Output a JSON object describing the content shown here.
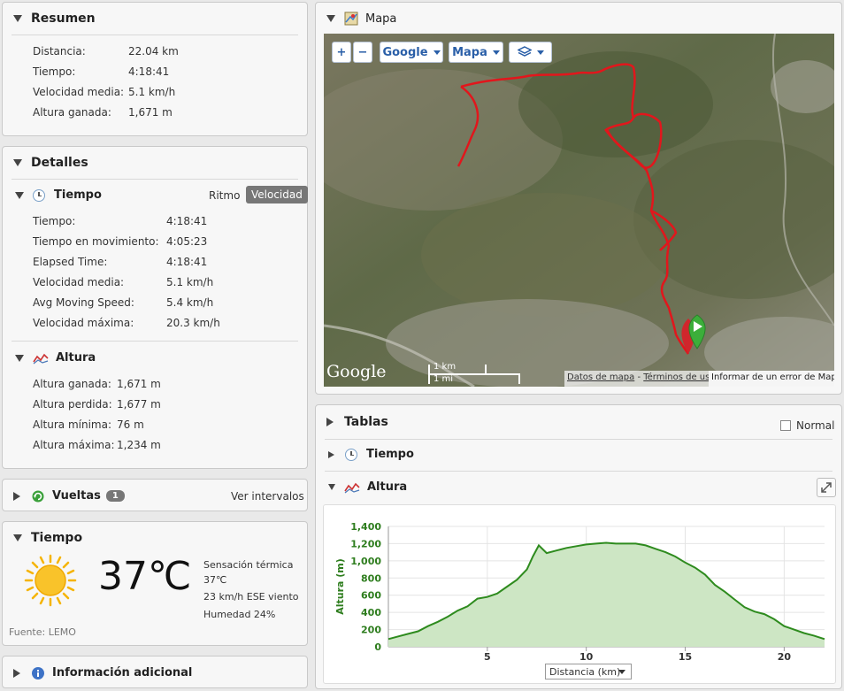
{
  "resumen": {
    "title": "Resumen",
    "rows": [
      {
        "label": "Distancia:",
        "value": "22.04 km"
      },
      {
        "label": "Tiempo:",
        "value": "4:18:41"
      },
      {
        "label": "Velocidad media:",
        "value": "5.1 km/h"
      },
      {
        "label": "Altura ganada:",
        "value": "1,671 m"
      }
    ]
  },
  "detalles": {
    "title": "Detalles",
    "tiempo": {
      "title": "Tiempo",
      "ritmo_label": "Ritmo",
      "velocidad_label": "Velocidad",
      "rows": [
        {
          "label": "Tiempo:",
          "value": "4:18:41"
        },
        {
          "label": "Tiempo en movimiento:",
          "value": "4:05:23"
        },
        {
          "label": "Elapsed Time:",
          "value": "4:18:41"
        },
        {
          "label": "Velocidad media:",
          "value": "5.1 km/h"
        },
        {
          "label": "Avg Moving Speed:",
          "value": "5.4 km/h"
        },
        {
          "label": "Velocidad máxima:",
          "value": "20.3 km/h"
        }
      ]
    },
    "altura": {
      "title": "Altura",
      "rows": [
        {
          "label": "Altura ganada:",
          "value": "1,671 m"
        },
        {
          "label": "Altura perdida:",
          "value": "1,677 m"
        },
        {
          "label": "Altura mínima:",
          "value": "76 m"
        },
        {
          "label": "Altura máxima:",
          "value": "1,234 m"
        }
      ]
    }
  },
  "vueltas": {
    "title": "Vueltas",
    "count": "1",
    "link": "Ver intervalos"
  },
  "weather": {
    "title": "Tiempo",
    "temp": "37℃",
    "feels_label": "Sensación térmica",
    "feels_value": "37℃",
    "wind": "23 km/h ESE viento",
    "humidity": "Humedad 24%",
    "source": "Fuente: LEMO",
    "icon": "sun-icon"
  },
  "info": {
    "title": "Información adicional"
  },
  "map": {
    "title": "Mapa",
    "zoom_in": "+",
    "zoom_out": "−",
    "provider_label": "Google",
    "type_label": "Mapa",
    "logo": "Google",
    "scale_km": "1 km",
    "scale_mi": "1 mi",
    "attribution_data": "Datos de mapa",
    "attribution_dash": " - ",
    "attribution_terms": "Términos de uso",
    "report": "Informar de un error de Maps"
  },
  "tablas": {
    "title": "Tablas",
    "normal_label": "Normal",
    "tiempo_label": "Tiempo",
    "altura_label": "Altura"
  },
  "chart_data": {
    "type": "area",
    "ylabel": "Altura (m)",
    "xlabel_select": "Distancia (km)",
    "xlim": [
      0,
      22.04
    ],
    "ylim": [
      0,
      1400
    ],
    "xticks": [
      5,
      10,
      15,
      20
    ],
    "yticks": [
      0,
      200,
      400,
      600,
      800,
      1000,
      1200,
      1400
    ],
    "ytick_labels": [
      "0",
      "200",
      "400",
      "600",
      "800",
      "1,000",
      "1,200",
      "1,400"
    ],
    "grid": true,
    "series_color": "#2e8b1e",
    "fill_color": "#cde6c4",
    "x": [
      0,
      0.5,
      1,
      1.5,
      2,
      2.5,
      3,
      3.5,
      4,
      4.5,
      5,
      5.5,
      6,
      6.5,
      7,
      7.3,
      7.6,
      8,
      8.5,
      9,
      9.5,
      10,
      10.5,
      11,
      11.5,
      12,
      12.5,
      13,
      13.5,
      14,
      14.5,
      15,
      15.5,
      16,
      16.5,
      17,
      17.5,
      18,
      18.5,
      19,
      19.5,
      20,
      20.5,
      21,
      21.5,
      22.04
    ],
    "y": [
      90,
      120,
      150,
      180,
      240,
      290,
      350,
      420,
      470,
      560,
      580,
      620,
      700,
      780,
      900,
      1050,
      1180,
      1090,
      1120,
      1150,
      1170,
      1190,
      1200,
      1210,
      1200,
      1200,
      1200,
      1180,
      1140,
      1100,
      1050,
      980,
      920,
      840,
      720,
      640,
      550,
      460,
      410,
      380,
      320,
      240,
      200,
      160,
      130,
      90
    ]
  }
}
